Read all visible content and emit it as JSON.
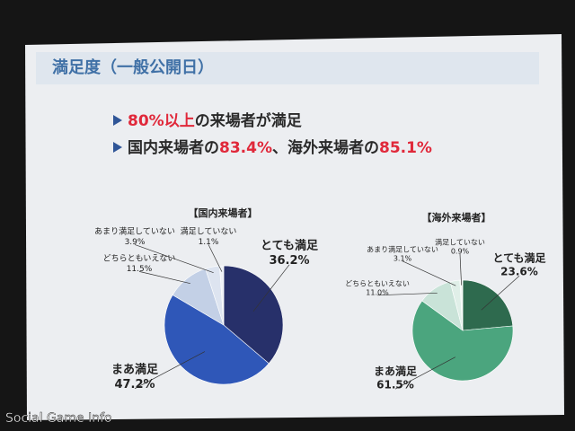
{
  "slide": {
    "title": "満足度（一般公開日）",
    "bullets": [
      [
        {
          "text": "80%以上",
          "red": true
        },
        {
          "text": "の来場者が満足",
          "red": false
        }
      ],
      [
        {
          "text": "国内来場者の",
          "red": false
        },
        {
          "text": "83.4%",
          "red": true
        },
        {
          "text": "、海外来場者の",
          "red": false
        },
        {
          "text": "85.1%",
          "red": true
        }
      ]
    ]
  },
  "watermark": "Social Game Info",
  "chart_data": [
    {
      "type": "pie",
      "title": "【国内来場者】",
      "categories": [
        "とても満足",
        "まあ満足",
        "どちらともいえない",
        "あまり満足していない",
        "満足していない"
      ],
      "values": [
        36.2,
        47.2,
        11.5,
        3.9,
        1.1
      ],
      "value_labels": [
        "36.2%",
        "47.2%",
        "11.5%",
        "3.9%",
        "1.1%"
      ],
      "colors": [
        "#27306a",
        "#2f57b8",
        "#c3d0e6",
        "#dde4f0",
        "#eef1f7"
      ]
    },
    {
      "type": "pie",
      "title": "【海外来場者】",
      "categories": [
        "とても満足",
        "まあ満足",
        "どちらともいえない",
        "あまり満足していない",
        "満足していない"
      ],
      "values": [
        23.6,
        61.5,
        11.0,
        3.1,
        0.9
      ],
      "value_labels": [
        "23.6%",
        "61.5%",
        "11.0%",
        "3.1%",
        "0.9%"
      ],
      "colors": [
        "#2e6a4e",
        "#4ba57e",
        "#c9e3d8",
        "#e0efe8",
        "#f0f7f3"
      ]
    }
  ]
}
